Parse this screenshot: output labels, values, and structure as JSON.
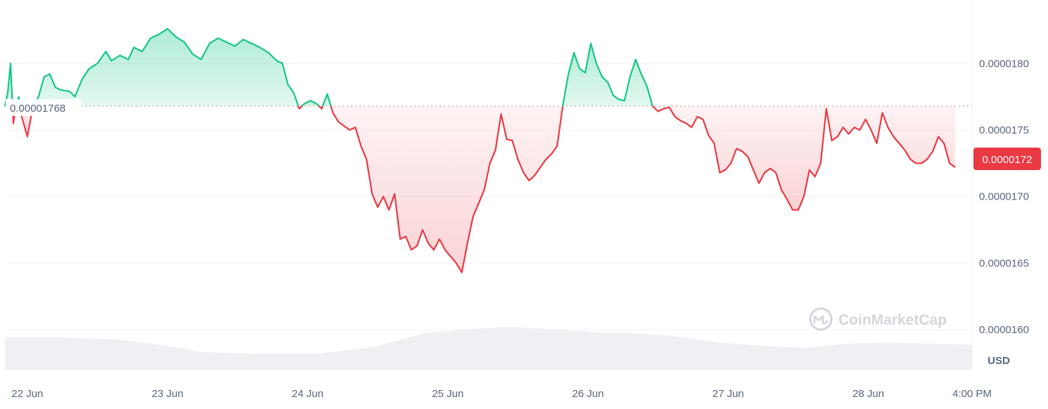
{
  "chart_data": {
    "type": "area",
    "currency": "USD",
    "open_price": 1.768e-05,
    "open_price_label": "0.00001768",
    "current_price_label": "0.0000172",
    "up_color": "#16c784",
    "down_color": "#ea3943",
    "ylim": [
      1.57e-05,
      1.845e-05
    ],
    "y_ticks": [
      {
        "value": 1.8e-05,
        "label": "0.0000180"
      },
      {
        "value": 1.75e-05,
        "label": "0.0000175"
      },
      {
        "value": 1.7e-05,
        "label": "0.0000170"
      },
      {
        "value": 1.65e-05,
        "label": "0.0000165"
      },
      {
        "value": 1.6e-05,
        "label": "0.0000160"
      }
    ],
    "x_ticks": [
      {
        "t": 0.16,
        "label": "22 Jun"
      },
      {
        "t": 1.16,
        "label": "23 Jun"
      },
      {
        "t": 2.16,
        "label": "24 Jun"
      },
      {
        "t": 3.16,
        "label": "25 Jun"
      },
      {
        "t": 4.16,
        "label": "26 Jun"
      },
      {
        "t": 5.16,
        "label": "27 Jun"
      },
      {
        "t": 6.16,
        "label": "28 Jun"
      },
      {
        "t": 6.9,
        "label": "4:00 PM"
      }
    ],
    "xlim": [
      0,
      6.9
    ],
    "price_series": [
      [
        0.0,
        1768
      ],
      [
        0.02,
        1778
      ],
      [
        0.04,
        1800
      ],
      [
        0.06,
        1755
      ],
      [
        0.08,
        1770
      ],
      [
        0.1,
        1775
      ],
      [
        0.12,
        1760
      ],
      [
        0.16,
        1745
      ],
      [
        0.2,
        1768
      ],
      [
        0.24,
        1775
      ],
      [
        0.28,
        1790
      ],
      [
        0.32,
        1792
      ],
      [
        0.36,
        1782
      ],
      [
        0.4,
        1780
      ],
      [
        0.46,
        1779
      ],
      [
        0.5,
        1775
      ],
      [
        0.55,
        1788
      ],
      [
        0.6,
        1796
      ],
      [
        0.66,
        1800
      ],
      [
        0.72,
        1809
      ],
      [
        0.76,
        1802
      ],
      [
        0.82,
        1806
      ],
      [
        0.88,
        1803
      ],
      [
        0.92,
        1812
      ],
      [
        0.98,
        1809
      ],
      [
        1.04,
        1819
      ],
      [
        1.1,
        1822
      ],
      [
        1.16,
        1826
      ],
      [
        1.22,
        1820
      ],
      [
        1.28,
        1816
      ],
      [
        1.34,
        1807
      ],
      [
        1.4,
        1803
      ],
      [
        1.46,
        1815
      ],
      [
        1.52,
        1819
      ],
      [
        1.58,
        1816
      ],
      [
        1.64,
        1813
      ],
      [
        1.7,
        1818
      ],
      [
        1.76,
        1815
      ],
      [
        1.82,
        1812
      ],
      [
        1.88,
        1808
      ],
      [
        1.94,
        1802
      ],
      [
        1.98,
        1800
      ],
      [
        2.02,
        1784
      ],
      [
        2.06,
        1778
      ],
      [
        2.1,
        1766
      ],
      [
        2.14,
        1770
      ],
      [
        2.18,
        1772
      ],
      [
        2.22,
        1770
      ],
      [
        2.26,
        1766
      ],
      [
        2.3,
        1777
      ],
      [
        2.34,
        1763
      ],
      [
        2.38,
        1756
      ],
      [
        2.42,
        1753
      ],
      [
        2.46,
        1750
      ],
      [
        2.5,
        1752
      ],
      [
        2.54,
        1738
      ],
      [
        2.58,
        1728
      ],
      [
        2.62,
        1702
      ],
      [
        2.66,
        1692
      ],
      [
        2.7,
        1700
      ],
      [
        2.74,
        1690
      ],
      [
        2.78,
        1702
      ],
      [
        2.82,
        1668
      ],
      [
        2.86,
        1670
      ],
      [
        2.9,
        1660
      ],
      [
        2.94,
        1663
      ],
      [
        2.98,
        1675
      ],
      [
        3.02,
        1665
      ],
      [
        3.06,
        1660
      ],
      [
        3.1,
        1668
      ],
      [
        3.14,
        1660
      ],
      [
        3.18,
        1655
      ],
      [
        3.22,
        1650
      ],
      [
        3.26,
        1643
      ],
      [
        3.3,
        1665
      ],
      [
        3.34,
        1685
      ],
      [
        3.38,
        1695
      ],
      [
        3.42,
        1705
      ],
      [
        3.46,
        1725
      ],
      [
        3.5,
        1735
      ],
      [
        3.54,
        1762
      ],
      [
        3.58,
        1743
      ],
      [
        3.62,
        1742
      ],
      [
        3.66,
        1728
      ],
      [
        3.7,
        1718
      ],
      [
        3.74,
        1712
      ],
      [
        3.78,
        1716
      ],
      [
        3.82,
        1722
      ],
      [
        3.86,
        1728
      ],
      [
        3.9,
        1732
      ],
      [
        3.94,
        1738
      ],
      [
        3.98,
        1768
      ],
      [
        4.02,
        1792
      ],
      [
        4.06,
        1808
      ],
      [
        4.1,
        1796
      ],
      [
        4.14,
        1793
      ],
      [
        4.18,
        1815
      ],
      [
        4.22,
        1800
      ],
      [
        4.26,
        1790
      ],
      [
        4.3,
        1786
      ],
      [
        4.34,
        1776
      ],
      [
        4.38,
        1773
      ],
      [
        4.42,
        1772
      ],
      [
        4.46,
        1790
      ],
      [
        4.5,
        1803
      ],
      [
        4.54,
        1792
      ],
      [
        4.58,
        1783
      ],
      [
        4.62,
        1768
      ],
      [
        4.66,
        1764
      ],
      [
        4.7,
        1766
      ],
      [
        4.74,
        1767
      ],
      [
        4.78,
        1760
      ],
      [
        4.82,
        1757
      ],
      [
        4.86,
        1755
      ],
      [
        4.9,
        1752
      ],
      [
        4.94,
        1760
      ],
      [
        4.98,
        1758
      ],
      [
        5.02,
        1746
      ],
      [
        5.06,
        1740
      ],
      [
        5.1,
        1718
      ],
      [
        5.14,
        1720
      ],
      [
        5.18,
        1725
      ],
      [
        5.22,
        1736
      ],
      [
        5.26,
        1734
      ],
      [
        5.3,
        1730
      ],
      [
        5.34,
        1720
      ],
      [
        5.38,
        1710
      ],
      [
        5.42,
        1718
      ],
      [
        5.46,
        1721
      ],
      [
        5.5,
        1718
      ],
      [
        5.54,
        1705
      ],
      [
        5.58,
        1698
      ],
      [
        5.62,
        1690
      ],
      [
        5.66,
        1690
      ],
      [
        5.7,
        1700
      ],
      [
        5.74,
        1720
      ],
      [
        5.78,
        1715
      ],
      [
        5.82,
        1725
      ],
      [
        5.86,
        1766
      ],
      [
        5.9,
        1742
      ],
      [
        5.94,
        1745
      ],
      [
        5.98,
        1752
      ],
      [
        6.02,
        1747
      ],
      [
        6.06,
        1752
      ],
      [
        6.1,
        1750
      ],
      [
        6.14,
        1758
      ],
      [
        6.18,
        1750
      ],
      [
        6.22,
        1740
      ],
      [
        6.26,
        1763
      ],
      [
        6.3,
        1752
      ],
      [
        6.34,
        1745
      ],
      [
        6.38,
        1740
      ],
      [
        6.42,
        1735
      ],
      [
        6.46,
        1728
      ],
      [
        6.5,
        1725
      ],
      [
        6.54,
        1725
      ],
      [
        6.58,
        1728
      ],
      [
        6.62,
        1734
      ],
      [
        6.66,
        1745
      ],
      [
        6.7,
        1740
      ],
      [
        6.74,
        1725
      ],
      [
        6.78,
        1722
      ]
    ],
    "volume_series": [
      [
        0.0,
        0.62
      ],
      [
        0.4,
        0.62
      ],
      [
        0.8,
        0.58
      ],
      [
        1.1,
        0.48
      ],
      [
        1.4,
        0.34
      ],
      [
        1.8,
        0.3
      ],
      [
        2.2,
        0.3
      ],
      [
        2.6,
        0.42
      ],
      [
        3.0,
        0.7
      ],
      [
        3.3,
        0.78
      ],
      [
        3.6,
        0.82
      ],
      [
        3.9,
        0.78
      ],
      [
        4.2,
        0.72
      ],
      [
        4.5,
        0.7
      ],
      [
        4.8,
        0.64
      ],
      [
        5.1,
        0.52
      ],
      [
        5.4,
        0.46
      ],
      [
        5.7,
        0.42
      ],
      [
        6.0,
        0.5
      ],
      [
        6.3,
        0.52
      ],
      [
        6.6,
        0.5
      ],
      [
        6.9,
        0.48
      ]
    ]
  },
  "watermark": {
    "text": "CoinMarketCap",
    "icon": "coinmarketcap-logo-icon"
  },
  "unit_label": "USD"
}
